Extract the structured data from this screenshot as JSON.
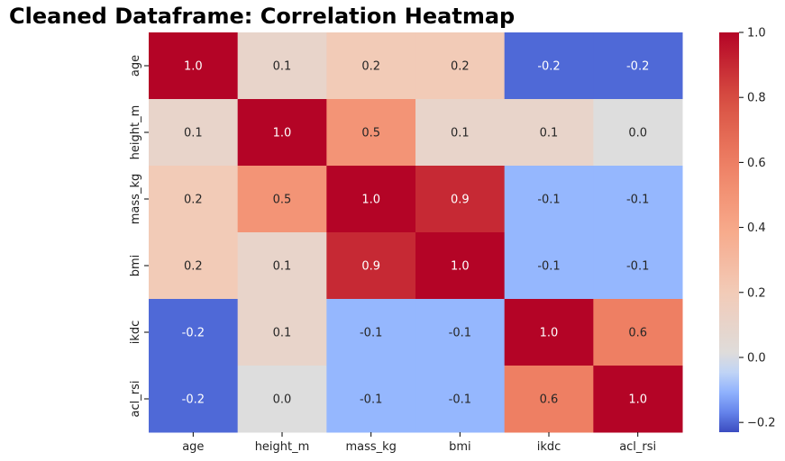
{
  "chart_data": {
    "type": "heatmap",
    "title": "Cleaned Dataframe: Correlation Heatmap",
    "x_labels": [
      "age",
      "height_m",
      "mass_kg",
      "bmi",
      "ikdc",
      "acl_rsi"
    ],
    "y_labels": [
      "age",
      "height_m",
      "mass_kg",
      "bmi",
      "ikdc",
      "acl_rsi"
    ],
    "values": [
      [
        1.0,
        0.1,
        0.2,
        0.2,
        -0.2,
        -0.2
      ],
      [
        0.1,
        1.0,
        0.5,
        0.1,
        0.1,
        0.0
      ],
      [
        0.2,
        0.5,
        1.0,
        0.9,
        -0.1,
        -0.1
      ],
      [
        0.2,
        0.1,
        0.9,
        1.0,
        -0.1,
        -0.1
      ],
      [
        -0.2,
        0.1,
        -0.1,
        -0.1,
        1.0,
        0.6
      ],
      [
        -0.2,
        0.0,
        -0.1,
        -0.1,
        0.6,
        1.0
      ]
    ],
    "value_labels": [
      [
        "1.0",
        "0.1",
        "0.2",
        "0.2",
        "-0.2",
        "-0.2"
      ],
      [
        "0.1",
        "1.0",
        "0.5",
        "0.1",
        "0.1",
        "0.0"
      ],
      [
        "0.2",
        "0.5",
        "1.0",
        "0.9",
        "-0.1",
        "-0.1"
      ],
      [
        "0.2",
        "0.1",
        "0.9",
        "1.0",
        "-0.1",
        "-0.1"
      ],
      [
        "-0.2",
        "0.1",
        "-0.1",
        "-0.1",
        "1.0",
        "0.6"
      ],
      [
        "-0.2",
        "0.0",
        "-0.1",
        "-0.1",
        "0.6",
        "1.0"
      ]
    ],
    "colormap": "coolwarm",
    "color_range": [
      -0.23,
      1.0
    ],
    "colorbar_ticks": [
      {
        "value": -0.2,
        "label": "−0.2"
      },
      {
        "value": 0.0,
        "label": "0.0"
      },
      {
        "value": 0.2,
        "label": "0.2"
      },
      {
        "value": 0.4,
        "label": "0.4"
      },
      {
        "value": 0.6,
        "label": "0.6"
      },
      {
        "value": 0.8,
        "label": "0.8"
      },
      {
        "value": 1.0,
        "label": "1.0"
      }
    ],
    "colors": {
      "low": "#b9d0f9",
      "mid": "#dddcdc",
      "high": "#b40426"
    }
  }
}
